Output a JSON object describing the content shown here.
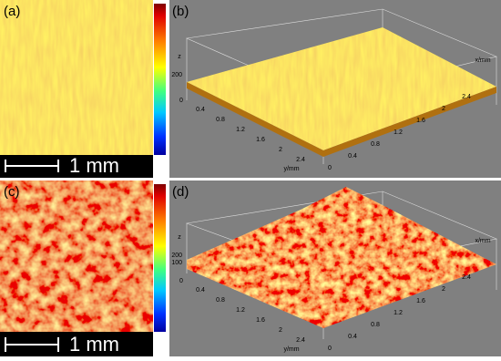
{
  "panels": [
    {
      "label": "(a)",
      "scale_bar": "1 mm"
    },
    {
      "label": "(b)",
      "z_label": "z",
      "z_ticks": [
        "200"
      ],
      "x_label": "x/mm",
      "y_label": "y/mm",
      "corner_tick": "0",
      "x_ticks": [
        "0",
        "0.4",
        "0.8",
        "1.2",
        "1.6",
        "2",
        "2.4"
      ],
      "y_ticks": [
        "0.4",
        "0.8",
        "1.2",
        "1.6",
        "2",
        "2.4"
      ]
    },
    {
      "label": "(c)",
      "scale_bar": "1 mm"
    },
    {
      "label": "(d)",
      "z_label": "z",
      "z_ticks": [
        "200",
        "100"
      ],
      "x_label": "x/mm",
      "y_label": "y/mm",
      "corner_tick": "0",
      "x_ticks": [
        "0",
        "0.4",
        "0.8",
        "1.2",
        "1.6",
        "2",
        "2.4"
      ],
      "y_ticks": [
        "0.4",
        "0.8",
        "1.2",
        "1.6",
        "2",
        "2.4"
      ]
    }
  ]
}
